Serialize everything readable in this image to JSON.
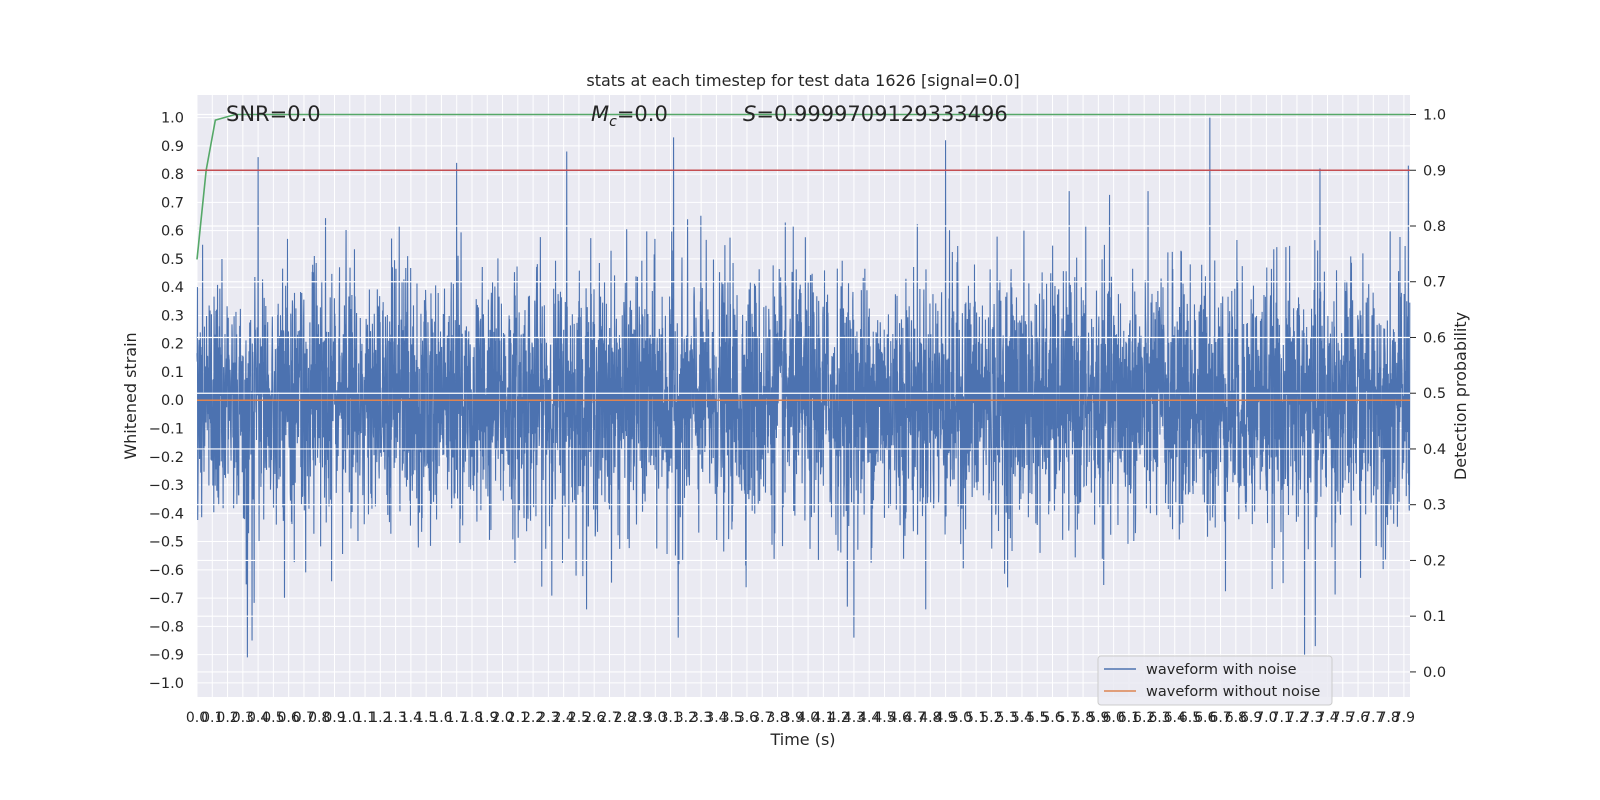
{
  "chart_data": {
    "type": "line",
    "title": "stats at each timestep for test data 1626 [signal=0.0]",
    "xlabel": "Time (s)",
    "ylabel": "Whitened strain",
    "ylabel_right": "Detection probability",
    "xlim": [
      0.0,
      7.94
    ],
    "ylim": [
      -1.05,
      1.08
    ],
    "ylim_right": [
      -0.045,
      1.035
    ],
    "grid": true,
    "legend_position": "lower-right",
    "x_ticks": [
      "0.0",
      "0.1",
      "0.2",
      "0.3",
      "0.4",
      "0.5",
      "0.6",
      "0.7",
      "0.8",
      "0.9",
      "1.0",
      "1.1",
      "1.2",
      "1.3",
      "1.4",
      "1.5",
      "1.6",
      "1.7",
      "1.8",
      "1.9",
      "2.0",
      "2.1",
      "2.2",
      "2.3",
      "2.4",
      "2.5",
      "2.6",
      "2.7",
      "2.8",
      "2.9",
      "3.0",
      "3.1",
      "3.2",
      "3.3",
      "3.4",
      "3.5",
      "3.6",
      "3.7",
      "3.8",
      "3.9",
      "4.0",
      "4.1",
      "4.2",
      "4.3",
      "4.4",
      "4.5",
      "4.6",
      "4.7",
      "4.8",
      "4.9",
      "5.0",
      "5.1",
      "5.2",
      "5.3",
      "5.4",
      "5.5",
      "5.6",
      "5.7",
      "5.8",
      "5.9",
      "6.0",
      "6.1",
      "6.2",
      "6.3",
      "6.4",
      "6.5",
      "6.6",
      "6.7",
      "6.8",
      "6.9",
      "7.0",
      "7.1",
      "7.2",
      "7.3",
      "7.4",
      "7.5",
      "7.6",
      "7.7",
      "7.8",
      "7.9"
    ],
    "y_ticks_left": [
      "1.0",
      "0.9",
      "0.8",
      "0.7",
      "0.6",
      "0.5",
      "0.4",
      "0.3",
      "0.2",
      "0.1",
      "0.0",
      "−0.1",
      "−0.2",
      "−0.3",
      "−0.4",
      "−0.5",
      "−0.6",
      "−0.7",
      "−0.8",
      "−0.9",
      "−1.0"
    ],
    "y_ticks_right": [
      "1.0",
      "0.9",
      "0.8",
      "0.7",
      "0.6",
      "0.5",
      "0.4",
      "0.3",
      "0.2",
      "0.1",
      "0.0"
    ],
    "annotations": [
      {
        "name": "snr",
        "text": "SNR=0.0"
      },
      {
        "name": "mc",
        "text": "Mc=0.0",
        "math_symbol": "M",
        "math_subscript": "c",
        "value_text": "=0.0"
      },
      {
        "name": "score",
        "text": "S=0.9999709129333496",
        "math_symbol": "S",
        "value_text": "=0.9999709129333496"
      }
    ],
    "series": [
      {
        "name": "waveform with noise",
        "axis": "left",
        "color": "#4c72b0",
        "kind": "noise",
        "y_range": [
          -0.92,
          1.0
        ]
      },
      {
        "name": "waveform without noise",
        "axis": "left",
        "color": "#dd8452",
        "x": [
          0.0,
          7.94
        ],
        "y": [
          0.0,
          0.0
        ]
      },
      {
        "axis": "right",
        "color": "#55a868",
        "x": [
          0.0,
          0.06,
          0.12,
          0.25,
          7.94
        ],
        "y": [
          0.74,
          0.9,
          0.99,
          1.0,
          1.0
        ]
      },
      {
        "axis": "right",
        "color": "#c44e52",
        "x": [
          0.0,
          7.94
        ],
        "y": [
          0.9,
          0.9
        ]
      }
    ],
    "noise_peaks": [
      {
        "x": 0.4,
        "y": 0.86
      },
      {
        "x": 1.7,
        "y": 0.84
      },
      {
        "x": 2.42,
        "y": 0.88
      },
      {
        "x": 3.12,
        "y": 0.93
      },
      {
        "x": 4.9,
        "y": 0.92
      },
      {
        "x": 6.63,
        "y": 1.0
      },
      {
        "x": 7.35,
        "y": 0.82
      },
      {
        "x": 7.93,
        "y": 0.83
      },
      {
        "x": 0.33,
        "y": -0.91
      },
      {
        "x": 0.36,
        "y": -0.85
      },
      {
        "x": 7.25,
        "y": -0.9
      },
      {
        "x": 7.32,
        "y": -0.87
      },
      {
        "x": 4.3,
        "y": -0.84
      },
      {
        "x": 3.15,
        "y": -0.84
      }
    ],
    "legend": [
      {
        "label": "waveform with noise",
        "color": "#4c72b0"
      },
      {
        "label": "waveform without noise",
        "color": "#dd8452"
      }
    ],
    "colors": {
      "background": "#eaeaf2",
      "grid": "#ffffff"
    }
  }
}
